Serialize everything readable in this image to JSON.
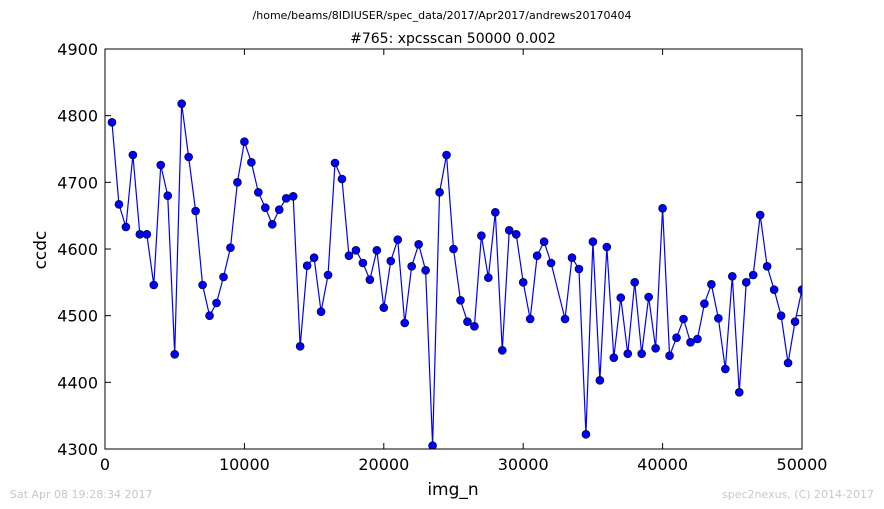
{
  "suptitle": "/home/beams/8IDIUSER/spec_data/2017/Apr2017/andrews20170404",
  "footer": {
    "left": "Sat Apr 08 19:28:34 2017",
    "right": "spec2nexus, (C) 2014-2017"
  },
  "colors": {
    "series": "#0000ff",
    "axes": "#000000",
    "footer": "#c8c8c8"
  },
  "chart_data": {
    "type": "line",
    "title": "#765: xpcsscan 50000 0.002",
    "xlabel": "img_n",
    "ylabel": "ccdc",
    "xlim": [
      0,
      50000
    ],
    "ylim": [
      4300,
      4900
    ],
    "xticks": [
      0,
      10000,
      20000,
      30000,
      40000,
      50000
    ],
    "xtick_labels": [
      "0",
      "10000",
      "20000",
      "30000",
      "40000",
      "50000"
    ],
    "yticks": [
      4300,
      4400,
      4500,
      4600,
      4700,
      4800,
      4900
    ],
    "ytick_labels": [
      "4300",
      "4400",
      "4500",
      "4600",
      "4700",
      "4800",
      "4900"
    ],
    "grid": false,
    "marker": "circle",
    "series": [
      {
        "points": [
          [
            500,
            4790
          ],
          [
            1000,
            4667
          ],
          [
            1500,
            4633
          ],
          [
            2000,
            4741
          ],
          [
            2500,
            4622
          ],
          [
            3000,
            4622
          ],
          [
            3500,
            4546
          ],
          [
            4000,
            4726
          ],
          [
            4500,
            4680
          ],
          [
            5000,
            4442
          ],
          [
            5500,
            4818
          ],
          [
            6000,
            4738
          ],
          [
            6500,
            4657
          ],
          [
            7000,
            4546
          ],
          [
            7500,
            4500
          ],
          [
            8000,
            4519
          ],
          [
            8500,
            4558
          ],
          [
            9000,
            4602
          ],
          [
            9500,
            4700
          ],
          [
            10000,
            4761
          ],
          [
            10500,
            4730
          ],
          [
            11000,
            4685
          ],
          [
            11500,
            4662
          ],
          [
            12000,
            4637
          ],
          [
            12500,
            4659
          ],
          [
            13000,
            4676
          ],
          [
            13500,
            4679
          ],
          [
            14000,
            4454
          ],
          [
            14500,
            4575
          ],
          [
            15000,
            4587
          ],
          [
            15500,
            4506
          ],
          [
            16000,
            4561
          ],
          [
            16500,
            4729
          ],
          [
            17000,
            4705
          ],
          [
            17500,
            4590
          ],
          [
            18000,
            4598
          ],
          [
            18500,
            4579
          ],
          [
            19000,
            4554
          ],
          [
            19500,
            4598
          ],
          [
            20000,
            4512
          ],
          [
            20500,
            4582
          ],
          [
            21000,
            4614
          ],
          [
            21500,
            4489
          ],
          [
            22000,
            4574
          ],
          [
            22500,
            4607
          ],
          [
            23000,
            4568
          ],
          [
            23500,
            4305
          ],
          [
            24000,
            4685
          ],
          [
            24500,
            4741
          ],
          [
            25000,
            4600
          ],
          [
            25500,
            4523
          ],
          [
            26000,
            4491
          ],
          [
            26500,
            4484
          ],
          [
            27000,
            4620
          ],
          [
            27500,
            4557
          ],
          [
            28000,
            4655
          ],
          [
            28500,
            4448
          ],
          [
            29000,
            4628
          ],
          [
            29500,
            4622
          ],
          [
            30000,
            4550
          ],
          [
            30500,
            4495
          ],
          [
            31000,
            4590
          ],
          [
            31500,
            4611
          ],
          [
            32000,
            4579
          ],
          [
            33000,
            4495
          ],
          [
            33500,
            4587
          ],
          [
            34000,
            4570
          ],
          [
            34500,
            4322
          ],
          [
            35000,
            4611
          ],
          [
            35500,
            4403
          ],
          [
            36000,
            4603
          ],
          [
            36500,
            4437
          ],
          [
            37000,
            4527
          ],
          [
            37500,
            4443
          ],
          [
            38000,
            4550
          ],
          [
            38500,
            4443
          ],
          [
            39000,
            4528
          ],
          [
            39500,
            4451
          ],
          [
            40000,
            4661
          ],
          [
            40500,
            4440
          ],
          [
            41000,
            4467
          ],
          [
            41500,
            4495
          ],
          [
            42000,
            4460
          ],
          [
            42500,
            4465
          ],
          [
            43000,
            4518
          ],
          [
            43500,
            4547
          ],
          [
            44000,
            4496
          ],
          [
            44500,
            4420
          ],
          [
            45000,
            4559
          ],
          [
            45500,
            4385
          ],
          [
            46000,
            4550
          ],
          [
            46500,
            4561
          ],
          [
            47000,
            4651
          ],
          [
            47500,
            4574
          ],
          [
            48000,
            4539
          ],
          [
            48500,
            4500
          ],
          [
            49000,
            4429
          ],
          [
            49500,
            4491
          ],
          [
            50000,
            4539
          ]
        ]
      }
    ]
  }
}
